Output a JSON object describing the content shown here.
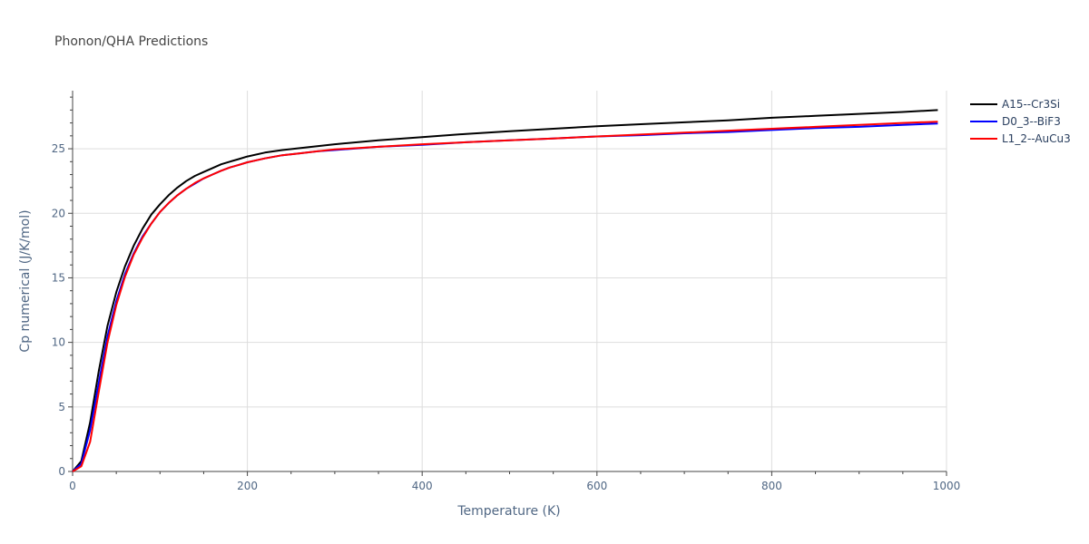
{
  "chart_data": {
    "type": "line",
    "title": "Phonon/QHA Predictions",
    "xlabel": "Temperature (K)",
    "ylabel": "Cp numerical (J/K/mol)",
    "xlim": [
      0,
      1000
    ],
    "ylim": [
      0,
      29.5
    ],
    "xticks": [
      0,
      200,
      400,
      600,
      800,
      1000
    ],
    "yticks": [
      0,
      5,
      10,
      15,
      20,
      25
    ],
    "grid": true,
    "legend_position": "top-right",
    "series": [
      {
        "name": "A15--Cr3Si",
        "color": "#000000",
        "x": [
          0,
          10,
          20,
          30,
          40,
          50,
          60,
          70,
          80,
          90,
          100,
          110,
          120,
          130,
          140,
          150,
          160,
          170,
          180,
          190,
          200,
          220,
          240,
          260,
          280,
          300,
          350,
          400,
          450,
          500,
          550,
          600,
          650,
          700,
          750,
          800,
          850,
          900,
          950,
          990
        ],
        "y": [
          0,
          0.8,
          3.8,
          7.8,
          11.3,
          13.9,
          15.9,
          17.5,
          18.8,
          19.9,
          20.7,
          21.4,
          22.0,
          22.5,
          22.9,
          23.2,
          23.5,
          23.8,
          24.0,
          24.2,
          24.4,
          24.7,
          24.9,
          25.05,
          25.2,
          25.35,
          25.65,
          25.9,
          26.15,
          26.35,
          26.55,
          26.75,
          26.9,
          27.05,
          27.2,
          27.4,
          27.55,
          27.7,
          27.85,
          28.0
        ]
      },
      {
        "name": "D0_3--BiF3",
        "color": "#0000ff",
        "x": [
          0,
          10,
          20,
          30,
          40,
          50,
          60,
          70,
          80,
          90,
          100,
          110,
          120,
          130,
          140,
          150,
          160,
          170,
          180,
          190,
          200,
          220,
          240,
          260,
          280,
          300,
          350,
          400,
          450,
          500,
          550,
          600,
          650,
          700,
          750,
          800,
          850,
          900,
          950,
          990
        ],
        "y": [
          0,
          0.6,
          3.2,
          6.9,
          10.5,
          13.2,
          15.3,
          16.9,
          18.2,
          19.2,
          20.1,
          20.8,
          21.4,
          21.9,
          22.3,
          22.7,
          23.0,
          23.3,
          23.55,
          23.75,
          23.95,
          24.25,
          24.5,
          24.65,
          24.8,
          24.9,
          25.15,
          25.3,
          25.5,
          25.65,
          25.8,
          25.95,
          26.05,
          26.2,
          26.3,
          26.45,
          26.6,
          26.7,
          26.85,
          26.95
        ]
      },
      {
        "name": "L1_2--AuCu3",
        "color": "#ff0000",
        "x": [
          0,
          10,
          20,
          30,
          40,
          50,
          60,
          70,
          80,
          90,
          100,
          110,
          120,
          130,
          140,
          150,
          160,
          170,
          180,
          190,
          200,
          220,
          240,
          260,
          280,
          300,
          350,
          400,
          450,
          500,
          550,
          600,
          650,
          700,
          750,
          800,
          850,
          900,
          950,
          990
        ],
        "y": [
          0,
          0.4,
          2.3,
          6.2,
          10.0,
          12.9,
          15.1,
          16.8,
          18.1,
          19.2,
          20.1,
          20.8,
          21.4,
          21.9,
          22.35,
          22.7,
          23.0,
          23.3,
          23.55,
          23.75,
          23.95,
          24.25,
          24.5,
          24.65,
          24.8,
          24.95,
          25.15,
          25.35,
          25.5,
          25.65,
          25.8,
          25.95,
          26.1,
          26.25,
          26.4,
          26.55,
          26.7,
          26.85,
          27.0,
          27.1
        ]
      }
    ]
  }
}
